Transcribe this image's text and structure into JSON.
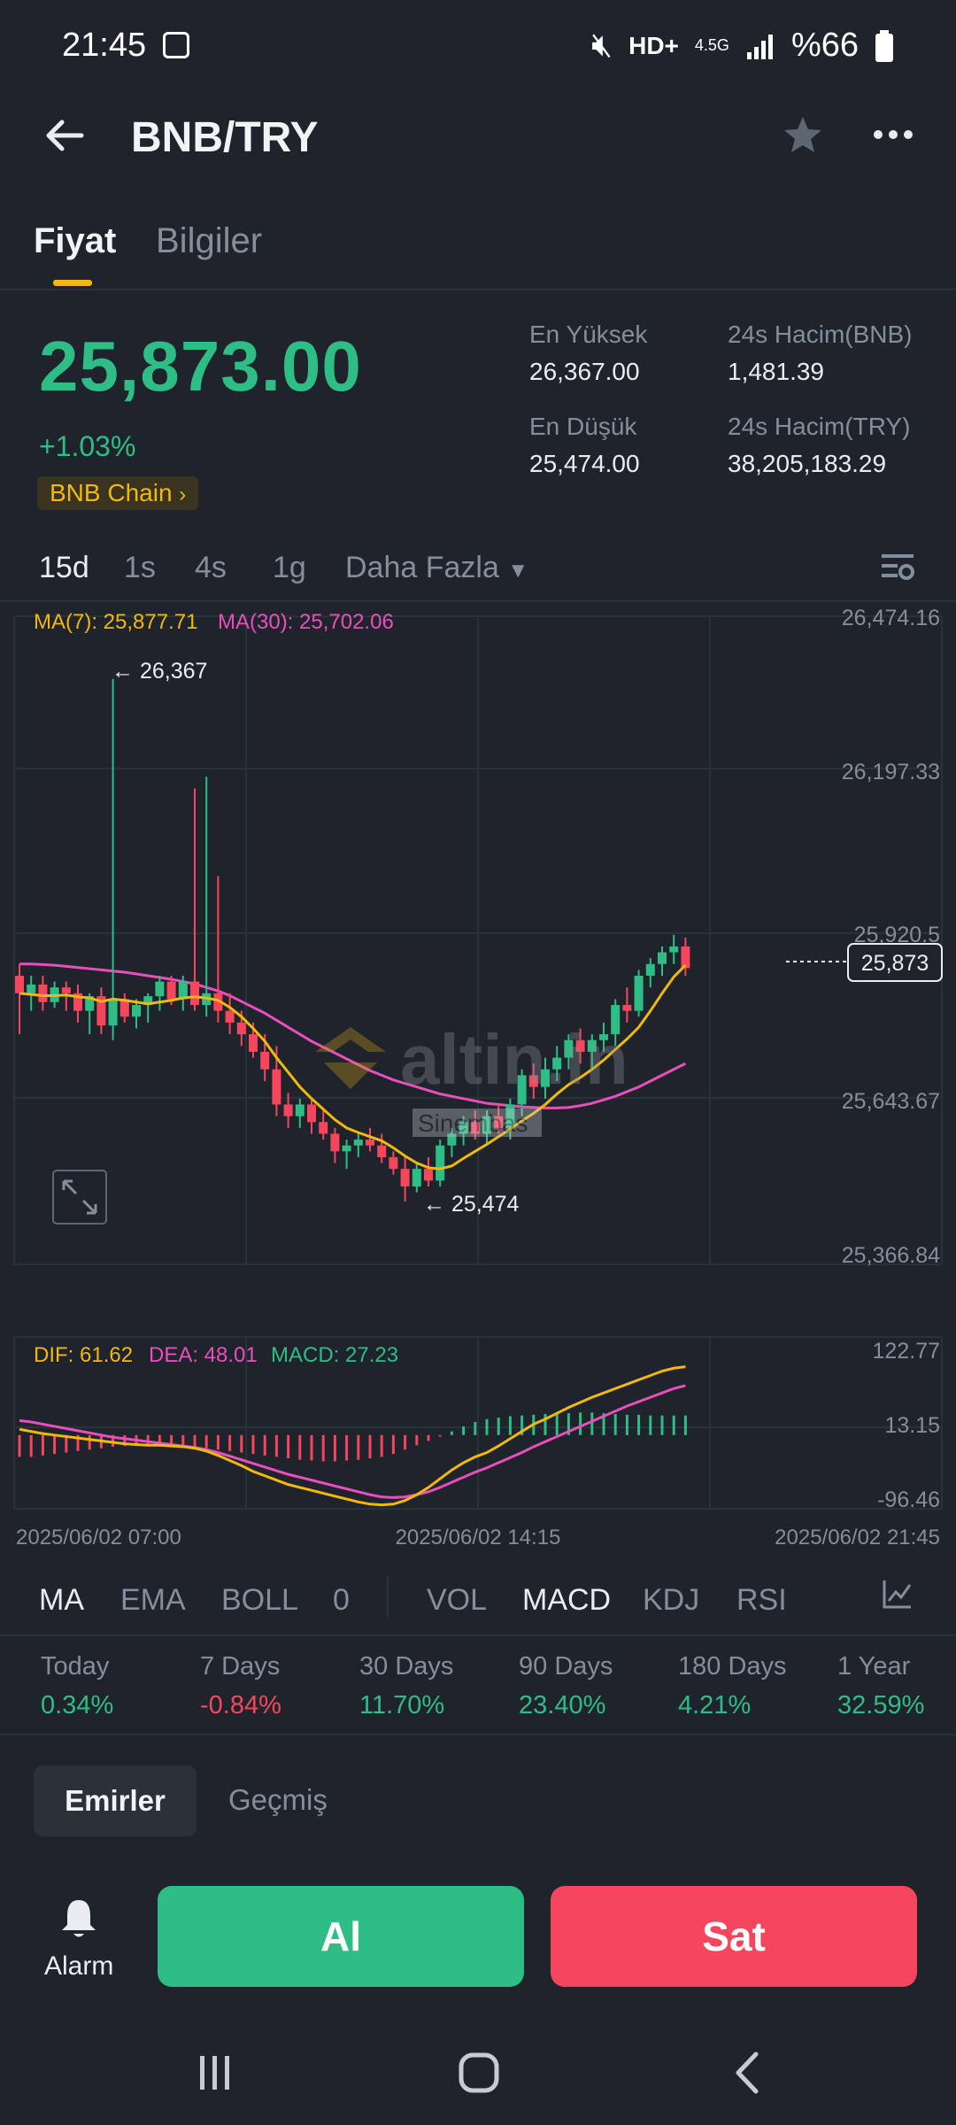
{
  "status_bar": {
    "time": "21:45",
    "network": "4.5G",
    "battery": "%66"
  },
  "header": {
    "title": "BNB/TRY"
  },
  "tabs": [
    {
      "label": "Fiyat"
    },
    {
      "label": "Bilgiler"
    }
  ],
  "price": {
    "last": "25,873.00",
    "change": "+1.03%",
    "chain_badge": "BNB Chain"
  },
  "stats": {
    "high_label": "En Yüksek",
    "high_value": "26,367.00",
    "low_label": "En Düşük",
    "low_value": "25,474.00",
    "vol_bnb_label": "24s Hacim(BNB)",
    "vol_bnb_value": "1,481.39",
    "vol_try_label": "24s Hacim(TRY)",
    "vol_try_value": "38,205,183.29"
  },
  "intervals": [
    "15d",
    "1s",
    "4s",
    "1g",
    "Daha Fazla"
  ],
  "chart": {
    "ma7_label": "MA(7): 25,877.71",
    "ma30_label": "MA(30): 25,702.06",
    "y_ticks": [
      "26,474.16",
      "26,197.33",
      "25,920.5",
      "25,643.67",
      "25,366.84"
    ],
    "high_marker": "← 26,367",
    "low_marker": "← 25,474",
    "current_price_tag": "25,873",
    "watermark": "altin.in",
    "watermark_sub": "Sinembas",
    "macd_dif": "DIF: 61.62",
    "macd_dea": "DEA: 48.01",
    "macd_macd": "MACD: 27.23",
    "macd_ticks": [
      "122.77",
      "13.15",
      "-96.46"
    ],
    "x_ticks": [
      "2025/06/02 07:00",
      "2025/06/02 14:15",
      "2025/06/02 21:45"
    ],
    "colors": {
      "up": "#2ebd85",
      "down": "#f6465d",
      "ma7": "#f0b90b",
      "ma30": "#e84fbd"
    }
  },
  "chart_data": {
    "type": "candlestick",
    "ylim": [
      25366.84,
      26474.16
    ],
    "candles": [
      [
        25860,
        25880,
        25760,
        25830
      ],
      [
        25830,
        25860,
        25800,
        25845
      ],
      [
        25845,
        25860,
        25800,
        25815
      ],
      [
        25815,
        25850,
        25805,
        25840
      ],
      [
        25840,
        25850,
        25800,
        25830
      ],
      [
        25830,
        25845,
        25780,
        25800
      ],
      [
        25800,
        25830,
        25760,
        25825
      ],
      [
        25825,
        25840,
        25760,
        25775
      ],
      [
        25775,
        26367,
        25750,
        25820
      ],
      [
        25820,
        25830,
        25780,
        25790
      ],
      [
        25790,
        25820,
        25770,
        25810
      ],
      [
        25810,
        25830,
        25780,
        25825
      ],
      [
        25825,
        25860,
        25800,
        25850
      ],
      [
        25850,
        25860,
        25810,
        25820
      ],
      [
        25820,
        25860,
        25800,
        25850
      ],
      [
        25850,
        26180,
        25800,
        25810
      ],
      [
        25810,
        26200,
        25790,
        25830
      ],
      [
        25830,
        26030,
        25780,
        25800
      ],
      [
        25800,
        25830,
        25760,
        25780
      ],
      [
        25780,
        25800,
        25740,
        25760
      ],
      [
        25760,
        25780,
        25720,
        25730
      ],
      [
        25730,
        25760,
        25680,
        25700
      ],
      [
        25700,
        25740,
        25620,
        25640
      ],
      [
        25640,
        25660,
        25600,
        25620
      ],
      [
        25620,
        25650,
        25600,
        25640
      ],
      [
        25640,
        25650,
        25590,
        25610
      ],
      [
        25610,
        25630,
        25580,
        25590
      ],
      [
        25590,
        25600,
        25540,
        25560
      ],
      [
        25560,
        25580,
        25530,
        25570
      ],
      [
        25570,
        25590,
        25550,
        25580
      ],
      [
        25580,
        25600,
        25560,
        25570
      ],
      [
        25570,
        25590,
        25540,
        25550
      ],
      [
        25550,
        25560,
        25520,
        25530
      ],
      [
        25530,
        25550,
        25474,
        25500
      ],
      [
        25500,
        25540,
        25490,
        25530
      ],
      [
        25530,
        25550,
        25500,
        25510
      ],
      [
        25510,
        25580,
        25500,
        25570
      ],
      [
        25570,
        25600,
        25550,
        25590
      ],
      [
        25590,
        25620,
        25570,
        25610
      ],
      [
        25610,
        25630,
        25580,
        25590
      ],
      [
        25590,
        25630,
        25570,
        25620
      ],
      [
        25620,
        25640,
        25590,
        25600
      ],
      [
        25600,
        25650,
        25580,
        25640
      ],
      [
        25640,
        25700,
        25620,
        25690
      ],
      [
        25690,
        25710,
        25650,
        25670
      ],
      [
        25670,
        25720,
        25650,
        25700
      ],
      [
        25700,
        25740,
        25680,
        25720
      ],
      [
        25720,
        25760,
        25700,
        25750
      ],
      [
        25750,
        25770,
        25710,
        25730
      ],
      [
        25730,
        25760,
        25700,
        25750
      ],
      [
        25750,
        25780,
        25730,
        25760
      ],
      [
        25760,
        25820,
        25740,
        25810
      ],
      [
        25810,
        25840,
        25780,
        25800
      ],
      [
        25800,
        25870,
        25790,
        25860
      ],
      [
        25860,
        25890,
        25840,
        25880
      ],
      [
        25880,
        25910,
        25860,
        25900
      ],
      [
        25900,
        25930,
        25880,
        25910
      ],
      [
        25910,
        25925,
        25860,
        25873
      ]
    ],
    "ma7": [
      25830,
      25828,
      25826,
      25826,
      25827,
      25824,
      25822,
      25816,
      25820,
      25818,
      25815,
      25812,
      25815,
      25818,
      25822,
      25824,
      25822,
      25818,
      25806,
      25790,
      25770,
      25748,
      25720,
      25695,
      25670,
      25650,
      25632,
      25614,
      25600,
      25592,
      25585,
      25578,
      25566,
      25552,
      25540,
      25532,
      25530,
      25535,
      25548,
      25560,
      25572,
      25585,
      25598,
      25612,
      25625,
      25640,
      25658,
      25674,
      25686,
      25700,
      25716,
      25734,
      25752,
      25772,
      25800,
      25830,
      25858,
      25878
    ],
    "ma30": [
      25880,
      25880,
      25879,
      25878,
      25876,
      25874,
      25872,
      25870,
      25868,
      25866,
      25863,
      25860,
      25857,
      25854,
      25850,
      25846,
      25840,
      25834,
      25826,
      25816,
      25806,
      25796,
      25784,
      25772,
      25760,
      25748,
      25738,
      25728,
      25718,
      25708,
      25698,
      25690,
      25682,
      25676,
      25670,
      25664,
      25658,
      25654,
      25650,
      25646,
      25642,
      25640,
      25638,
      25636,
      25635,
      25634,
      25634,
      25635,
      25638,
      25642,
      25648,
      25654,
      25662,
      25670,
      25680,
      25690,
      25700,
      25710
    ],
    "macd_hist": [
      -30,
      -30,
      -28,
      -26,
      -24,
      -22,
      -20,
      -18,
      -16,
      -15,
      -14,
      -14,
      -15,
      -15,
      -16,
      -16,
      -18,
      -20,
      -22,
      -24,
      -26,
      -28,
      -30,
      -32,
      -34,
      -35,
      -36,
      -36,
      -35,
      -34,
      -32,
      -30,
      -26,
      -20,
      -14,
      -8,
      -2,
      5,
      12,
      18,
      22,
      24,
      26,
      27,
      28,
      29,
      30,
      30,
      31,
      31,
      30,
      29,
      28,
      28,
      27,
      27,
      27,
      27
    ],
    "macd_dif": [
      8,
      5,
      2,
      0,
      -2,
      -4,
      -6,
      -8,
      -10,
      -12,
      -13,
      -14,
      -14,
      -15,
      -16,
      -18,
      -22,
      -28,
      -35,
      -42,
      -50,
      -56,
      -62,
      -68,
      -72,
      -76,
      -80,
      -84,
      -88,
      -92,
      -95,
      -96,
      -95,
      -90,
      -82,
      -72,
      -60,
      -48,
      -38,
      -30,
      -24,
      -15,
      -5,
      5,
      15,
      22,
      30,
      38,
      45,
      52,
      58,
      64,
      70,
      76,
      82,
      88,
      92,
      94
    ],
    "macd_dea": [
      20,
      18,
      15,
      12,
      9,
      6,
      3,
      0,
      -3,
      -5,
      -7,
      -9,
      -11,
      -13,
      -15,
      -17,
      -20,
      -24,
      -29,
      -34,
      -39,
      -44,
      -49,
      -54,
      -58,
      -62,
      -66,
      -70,
      -74,
      -78,
      -82,
      -85,
      -86,
      -85,
      -82,
      -78,
      -72,
      -65,
      -58,
      -51,
      -45,
      -38,
      -31,
      -24,
      -16,
      -9,
      -2,
      5,
      12,
      19,
      26,
      33,
      40,
      46,
      52,
      58,
      64,
      68
    ],
    "macd_ylim": [
      -96.46,
      122.77
    ]
  },
  "indicators": {
    "main": [
      "MA",
      "EMA",
      "BOLL",
      "0"
    ],
    "sub": [
      "VOL",
      "MACD",
      "KDJ",
      "RSI"
    ]
  },
  "performance": [
    {
      "label": "Today",
      "value": "0.34%",
      "trend": "up"
    },
    {
      "label": "7 Days",
      "value": "-0.84%",
      "trend": "down"
    },
    {
      "label": "30 Days",
      "value": "11.70%",
      "trend": "up"
    },
    {
      "label": "90 Days",
      "value": "23.40%",
      "trend": "up"
    },
    {
      "label": "180 Days",
      "value": "4.21%",
      "trend": "up"
    },
    {
      "label": "1 Year",
      "value": "32.59%",
      "trend": "up"
    }
  ],
  "orders": {
    "tab_active": "Emirler",
    "tab_history": "Geçmiş"
  },
  "trade": {
    "alarm_label": "Alarm",
    "buy_label": "Al",
    "sell_label": "Sat"
  }
}
